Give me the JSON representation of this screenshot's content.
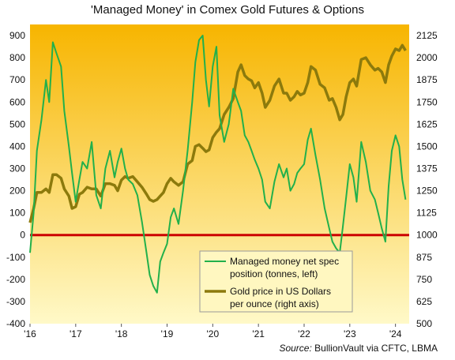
{
  "chart_data": {
    "type": "line",
    "title": "'Managed Money' in Comex Gold Futures & Options",
    "source_label": "Source:",
    "source_text": "BullionVault via CFTC, LBMA",
    "x_ticks": [
      "'16",
      "'17",
      "'18",
      "'19",
      "'20",
      "'21",
      "'22",
      "'23",
      "'24"
    ],
    "x_range": [
      2016.0,
      2024.3
    ],
    "y_left": {
      "range": [
        -400,
        950
      ],
      "ticks": [
        -400,
        -300,
        -200,
        -100,
        0,
        100,
        200,
        300,
        400,
        500,
        600,
        700,
        800,
        900
      ]
    },
    "y_right": {
      "range": [
        500,
        2187.5
      ],
      "ticks": [
        500,
        625,
        750,
        875,
        1000,
        1125,
        1250,
        1375,
        1500,
        1625,
        1750,
        1875,
        2000,
        2125
      ]
    },
    "zero_line_color": "#cc0000",
    "background_gradient": [
      "#f7b500",
      "#fff9c8"
    ],
    "legend_position": "bottom-right",
    "series": [
      {
        "name": "Managed money net spec position (tonnes, left)",
        "legend_lines": [
          "Managed money net spec",
          "position (tonnes, left)"
        ],
        "axis": "left",
        "color": "#22b04b",
        "points": [
          [
            2016.0,
            -80
          ],
          [
            2016.08,
            100
          ],
          [
            2016.15,
            380
          ],
          [
            2016.25,
            520
          ],
          [
            2016.35,
            700
          ],
          [
            2016.42,
            600
          ],
          [
            2016.5,
            870
          ],
          [
            2016.58,
            820
          ],
          [
            2016.68,
            760
          ],
          [
            2016.75,
            560
          ],
          [
            2016.85,
            400
          ],
          [
            2016.92,
            280
          ],
          [
            2017.0,
            150
          ],
          [
            2017.08,
            250
          ],
          [
            2017.15,
            330
          ],
          [
            2017.25,
            300
          ],
          [
            2017.35,
            420
          ],
          [
            2017.45,
            180
          ],
          [
            2017.55,
            120
          ],
          [
            2017.65,
            300
          ],
          [
            2017.75,
            380
          ],
          [
            2017.85,
            260
          ],
          [
            2017.92,
            330
          ],
          [
            2018.0,
            390
          ],
          [
            2018.08,
            300
          ],
          [
            2018.15,
            250
          ],
          [
            2018.25,
            230
          ],
          [
            2018.35,
            180
          ],
          [
            2018.45,
            60
          ],
          [
            2018.55,
            -80
          ],
          [
            2018.62,
            -180
          ],
          [
            2018.7,
            -230
          ],
          [
            2018.78,
            -260
          ],
          [
            2018.85,
            -120
          ],
          [
            2018.92,
            -80
          ],
          [
            2019.0,
            -40
          ],
          [
            2019.08,
            80
          ],
          [
            2019.15,
            120
          ],
          [
            2019.25,
            50
          ],
          [
            2019.35,
            200
          ],
          [
            2019.45,
            380
          ],
          [
            2019.55,
            600
          ],
          [
            2019.62,
            780
          ],
          [
            2019.7,
            880
          ],
          [
            2019.78,
            900
          ],
          [
            2019.85,
            700
          ],
          [
            2019.92,
            580
          ],
          [
            2020.0,
            760
          ],
          [
            2020.08,
            850
          ],
          [
            2020.15,
            540
          ],
          [
            2020.25,
            420
          ],
          [
            2020.35,
            500
          ],
          [
            2020.45,
            660
          ],
          [
            2020.55,
            600
          ],
          [
            2020.62,
            560
          ],
          [
            2020.7,
            450
          ],
          [
            2020.78,
            420
          ],
          [
            2020.85,
            380
          ],
          [
            2020.92,
            340
          ],
          [
            2021.0,
            300
          ],
          [
            2021.08,
            250
          ],
          [
            2021.15,
            150
          ],
          [
            2021.25,
            120
          ],
          [
            2021.35,
            240
          ],
          [
            2021.45,
            320
          ],
          [
            2021.55,
            260
          ],
          [
            2021.62,
            300
          ],
          [
            2021.7,
            200
          ],
          [
            2021.78,
            230
          ],
          [
            2021.85,
            280
          ],
          [
            2021.92,
            300
          ],
          [
            2022.0,
            320
          ],
          [
            2022.08,
            430
          ],
          [
            2022.15,
            480
          ],
          [
            2022.25,
            360
          ],
          [
            2022.35,
            250
          ],
          [
            2022.45,
            120
          ],
          [
            2022.55,
            30
          ],
          [
            2022.62,
            -30
          ],
          [
            2022.7,
            -60
          ],
          [
            2022.78,
            -80
          ],
          [
            2022.85,
            40
          ],
          [
            2022.92,
            170
          ],
          [
            2023.0,
            320
          ],
          [
            2023.08,
            260
          ],
          [
            2023.15,
            150
          ],
          [
            2023.25,
            420
          ],
          [
            2023.35,
            330
          ],
          [
            2023.45,
            200
          ],
          [
            2023.55,
            160
          ],
          [
            2023.62,
            100
          ],
          [
            2023.7,
            30
          ],
          [
            2023.78,
            -30
          ],
          [
            2023.85,
            220
          ],
          [
            2023.92,
            380
          ],
          [
            2024.0,
            450
          ],
          [
            2024.08,
            400
          ],
          [
            2024.15,
            250
          ],
          [
            2024.22,
            160
          ]
        ]
      },
      {
        "name": "Gold price in US Dollars per ounce (right axis)",
        "legend_lines": [
          "Gold price in US Dollars",
          "per ounce (right axis)"
        ],
        "axis": "right",
        "color": "#8c7a0c",
        "points": [
          [
            2016.0,
            1070
          ],
          [
            2016.08,
            1150
          ],
          [
            2016.15,
            1240
          ],
          [
            2016.25,
            1240
          ],
          [
            2016.35,
            1260
          ],
          [
            2016.42,
            1240
          ],
          [
            2016.5,
            1340
          ],
          [
            2016.58,
            1340
          ],
          [
            2016.68,
            1320
          ],
          [
            2016.75,
            1260
          ],
          [
            2016.85,
            1220
          ],
          [
            2016.92,
            1150
          ],
          [
            2017.0,
            1160
          ],
          [
            2017.08,
            1230
          ],
          [
            2017.15,
            1240
          ],
          [
            2017.25,
            1270
          ],
          [
            2017.35,
            1260
          ],
          [
            2017.45,
            1260
          ],
          [
            2017.55,
            1220
          ],
          [
            2017.65,
            1290
          ],
          [
            2017.75,
            1290
          ],
          [
            2017.85,
            1280
          ],
          [
            2017.92,
            1250
          ],
          [
            2018.0,
            1310
          ],
          [
            2018.08,
            1330
          ],
          [
            2018.15,
            1320
          ],
          [
            2018.25,
            1330
          ],
          [
            2018.35,
            1300
          ],
          [
            2018.45,
            1270
          ],
          [
            2018.55,
            1230
          ],
          [
            2018.62,
            1200
          ],
          [
            2018.7,
            1190
          ],
          [
            2018.78,
            1200
          ],
          [
            2018.85,
            1220
          ],
          [
            2018.92,
            1240
          ],
          [
            2019.0,
            1290
          ],
          [
            2019.08,
            1320
          ],
          [
            2019.15,
            1300
          ],
          [
            2019.25,
            1280
          ],
          [
            2019.35,
            1300
          ],
          [
            2019.45,
            1400
          ],
          [
            2019.55,
            1420
          ],
          [
            2019.62,
            1500
          ],
          [
            2019.7,
            1510
          ],
          [
            2019.78,
            1490
          ],
          [
            2019.85,
            1470
          ],
          [
            2019.92,
            1480
          ],
          [
            2020.0,
            1550
          ],
          [
            2020.08,
            1580
          ],
          [
            2020.15,
            1600
          ],
          [
            2020.25,
            1680
          ],
          [
            2020.35,
            1720
          ],
          [
            2020.45,
            1770
          ],
          [
            2020.55,
            1920
          ],
          [
            2020.62,
            1960
          ],
          [
            2020.7,
            1900
          ],
          [
            2020.78,
            1880
          ],
          [
            2020.85,
            1870
          ],
          [
            2020.92,
            1830
          ],
          [
            2021.0,
            1860
          ],
          [
            2021.08,
            1800
          ],
          [
            2021.15,
            1720
          ],
          [
            2021.25,
            1760
          ],
          [
            2021.35,
            1840
          ],
          [
            2021.45,
            1880
          ],
          [
            2021.55,
            1800
          ],
          [
            2021.62,
            1800
          ],
          [
            2021.7,
            1760
          ],
          [
            2021.78,
            1780
          ],
          [
            2021.85,
            1810
          ],
          [
            2021.92,
            1790
          ],
          [
            2022.0,
            1800
          ],
          [
            2022.08,
            1860
          ],
          [
            2022.15,
            1950
          ],
          [
            2022.25,
            1930
          ],
          [
            2022.35,
            1850
          ],
          [
            2022.45,
            1830
          ],
          [
            2022.55,
            1760
          ],
          [
            2022.62,
            1770
          ],
          [
            2022.7,
            1720
          ],
          [
            2022.78,
            1650
          ],
          [
            2022.85,
            1680
          ],
          [
            2022.92,
            1780
          ],
          [
            2023.0,
            1860
          ],
          [
            2023.08,
            1880
          ],
          [
            2023.15,
            1840
          ],
          [
            2023.25,
            1990
          ],
          [
            2023.35,
            2000
          ],
          [
            2023.45,
            1960
          ],
          [
            2023.55,
            1930
          ],
          [
            2023.62,
            1940
          ],
          [
            2023.7,
            1920
          ],
          [
            2023.78,
            1860
          ],
          [
            2023.85,
            1960
          ],
          [
            2023.92,
            2010
          ],
          [
            2024.0,
            2050
          ],
          [
            2024.08,
            2040
          ],
          [
            2024.15,
            2070
          ],
          [
            2024.22,
            2040
          ]
        ]
      }
    ]
  }
}
